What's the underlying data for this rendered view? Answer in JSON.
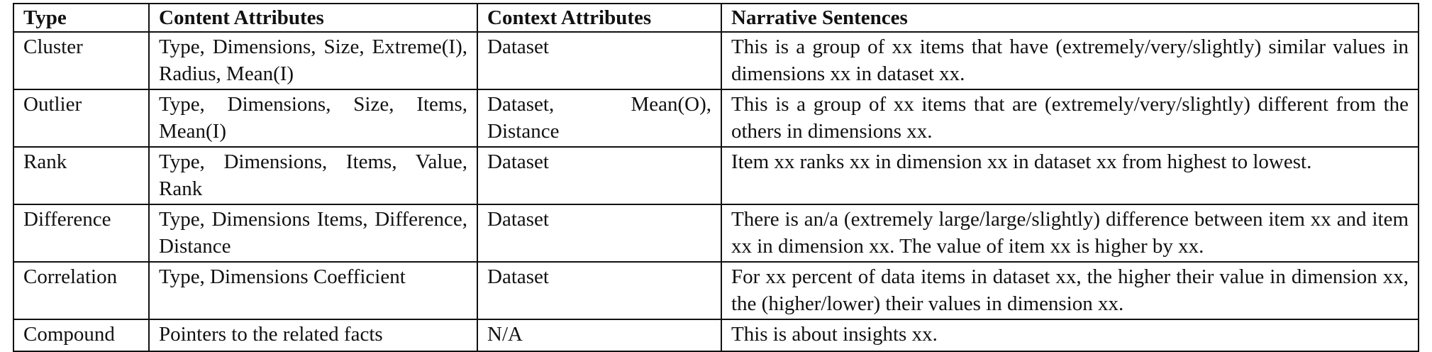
{
  "table": {
    "headers": [
      "Type",
      "Content Attributes",
      "Context Attributes",
      "Narrative Sentences"
    ],
    "rows": [
      {
        "type": "Cluster",
        "content": "Type, Dimensions, Size, Ex­treme(I), Radius, Mean(I)",
        "context": "Dataset",
        "narrative": "This is a group of xx items that have (extremely/very/slightly) similar values in dimensions xx in dataset xx."
      },
      {
        "type": "Outlier",
        "content": "Type, Dimensions, Size, Items, Mean(I)",
        "context": "Dataset, Mean(O), Distance",
        "narrative": "This is a group of xx items that are (extremely/very/slightly) different from the others in dimensions xx."
      },
      {
        "type": "Rank",
        "content": "Type, Dimensions, Items, Value, Rank",
        "context": "Dataset",
        "narrative": "Item xx ranks xx in dimension xx in dataset xx from highest to lowest."
      },
      {
        "type": "Difference",
        "content": "Type, Dimensions Items, Dif­ference, Distance",
        "context": "Dataset",
        "narrative": "There is an/a (extremely large/large/slightly) difference between item xx and item xx in dimension xx. The value of item xx is higher by xx."
      },
      {
        "type": "Correlation",
        "content": "Type, Dimensions Coefficient",
        "context": "Dataset",
        "narrative": "For xx percent of data items in dataset xx, the higher their value in dimension xx, the (higher/lower) their values in dimension xx."
      },
      {
        "type": "Compound",
        "content": "Pointers to the related facts",
        "context": "N/A",
        "narrative": "This is about insights xx."
      }
    ]
  }
}
